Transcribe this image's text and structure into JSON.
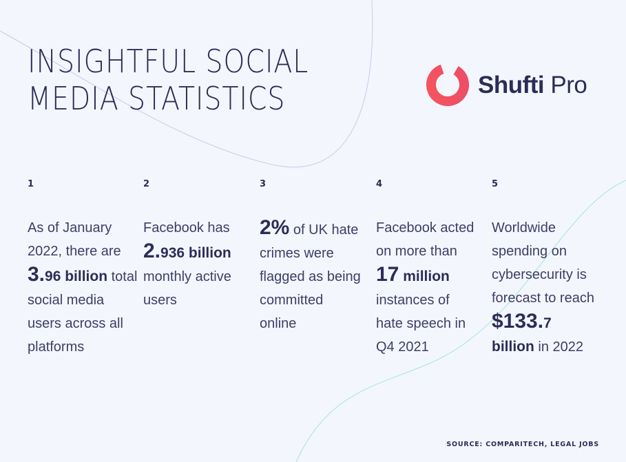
{
  "title": {
    "line1": "INSIGHTFUL SOCIAL",
    "line2": "MEDIA STATISTICS"
  },
  "logo": {
    "word1": "Shufti",
    "word2": "Pro",
    "brand_color": "#f0515f"
  },
  "stats": [
    {
      "number": "1",
      "pre": "As of January 2022, there are ",
      "value_big": "3.",
      "value_rest": "96 billion",
      "post": " total social media users across all platforms"
    },
    {
      "number": "2",
      "pre": "Facebook has ",
      "value_big": "2.",
      "value_rest": "936 billion",
      "post": " monthly active users"
    },
    {
      "number": "3",
      "pre": "",
      "value_big": "2%",
      "value_rest": "",
      "post": " of UK hate crimes were flagged as being committed online"
    },
    {
      "number": "4",
      "pre": "Facebook acted on more than ",
      "value_big": "17",
      "value_rest": " million",
      "post": " instances of hate speech in Q4 2021"
    },
    {
      "number": "5",
      "pre": "Worldwide spending on cybersecurity is forecast to reach ",
      "value_big": "$133.",
      "value_rest": "7",
      "value_rest2": "billion",
      "post": " in 2022"
    }
  ],
  "source": "SOURCE: COMPARITECH, LEGAL JOBS"
}
